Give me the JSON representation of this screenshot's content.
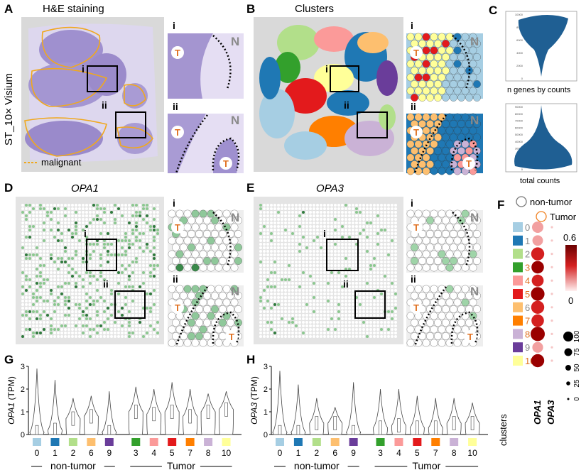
{
  "panels": {
    "A": {
      "label": "A",
      "title": "H&E staining",
      "sample": "ST_10× Visium",
      "legend": "malignant",
      "roi": [
        "i",
        "ii"
      ]
    },
    "B": {
      "label": "B",
      "title": "Clusters",
      "roi": [
        "i",
        "ii"
      ]
    },
    "C": {
      "label": "C",
      "violin1_label": "n genes by counts",
      "violin2_label": "total counts",
      "violin1_ticks": [
        "10000",
        "8000",
        "6000",
        "4000",
        "2000",
        "0"
      ],
      "violin2_ticks": [
        "90000",
        "80000",
        "70000",
        "60000",
        "50000",
        "40000",
        "30000",
        "20000",
        "10000",
        "0"
      ]
    },
    "D": {
      "label": "D",
      "gene": "OPA1",
      "roi": [
        "i",
        "ii"
      ]
    },
    "E": {
      "label": "E",
      "gene": "OPA3",
      "roi": [
        "i",
        "ii"
      ]
    },
    "F": {
      "label": "F",
      "legend_nontumor": "non-tumor",
      "legend_tumor": "Tumor",
      "colorbar_max": "0.6",
      "colorbar_min": "0",
      "size_legend": [
        "100",
        "75",
        "50",
        "25",
        "0"
      ],
      "x_labels": [
        "OPA1",
        "OPA3"
      ],
      "y_title": "clusters"
    },
    "G": {
      "label": "G"
    },
    "H": {
      "label": "H"
    },
    "markers": {
      "normal": "N",
      "tumor": "T"
    }
  },
  "cluster_colors": {
    "0": "#a6cee3",
    "1": "#1f78b4",
    "2": "#b2df8a",
    "3": "#33a02c",
    "4": "#fb9a99",
    "5": "#e31a1c",
    "6": "#fdbf6f",
    "7": "#ff7f00",
    "8": "#cab2d6",
    "9": "#6a3d9a",
    "10": "#ffff99"
  },
  "clusters": [
    {
      "id": "0",
      "tumor": false,
      "opa1_pct": 75,
      "opa1_expr": 0.3,
      "opa3_pct": 5,
      "opa3_expr": 0.05
    },
    {
      "id": "1",
      "tumor": false,
      "opa1_pct": 68,
      "opa1_expr": 0.32,
      "opa3_pct": 5,
      "opa3_expr": 0.05
    },
    {
      "id": "2",
      "tumor": false,
      "opa1_pct": 90,
      "opa1_expr": 0.5,
      "opa3_pct": 5,
      "opa3_expr": 0.05
    },
    {
      "id": "3",
      "tumor": true,
      "opa1_pct": 85,
      "opa1_expr": 0.58,
      "opa3_pct": 5,
      "opa3_expr": 0.05
    },
    {
      "id": "4",
      "tumor": true,
      "opa1_pct": 80,
      "opa1_expr": 0.52,
      "opa3_pct": 5,
      "opa3_expr": 0.05
    },
    {
      "id": "5",
      "tumor": true,
      "opa1_pct": 95,
      "opa1_expr": 0.6,
      "opa3_pct": 5,
      "opa3_expr": 0.05
    },
    {
      "id": "6",
      "tumor": false,
      "opa1_pct": 90,
      "opa1_expr": 0.55,
      "opa3_pct": 5,
      "opa3_expr": 0.05
    },
    {
      "id": "7",
      "tumor": true,
      "opa1_pct": 85,
      "opa1_expr": 0.5,
      "opa3_pct": 5,
      "opa3_expr": 0.05
    },
    {
      "id": "8",
      "tumor": true,
      "opa1_pct": 100,
      "opa1_expr": 0.62,
      "opa3_pct": 5,
      "opa3_expr": 0.05
    },
    {
      "id": "9",
      "tumor": false,
      "opa1_pct": 70,
      "opa1_expr": 0.4,
      "opa3_pct": 5,
      "opa3_expr": 0.05
    },
    {
      "id": "10",
      "tumor": true,
      "opa1_pct": 90,
      "opa1_expr": 0.58,
      "opa3_pct": 5,
      "opa3_expr": 0.05
    }
  ],
  "chart_data": [
    {
      "type": "violin",
      "panel": "G",
      "ylabel": "OPA1 (TPM)",
      "ylim": [
        0,
        3
      ],
      "yticks": [
        "0",
        "1",
        "2",
        "3"
      ],
      "categories": [
        "0",
        "1",
        "2",
        "6",
        "9",
        "3",
        "4",
        "5",
        "7",
        "8",
        "10"
      ],
      "medians": [
        0.1,
        0.2,
        0.7,
        0.8,
        0.1,
        1.0,
        0.9,
        1.0,
        0.8,
        1.0,
        1.1
      ],
      "maxima": [
        2.9,
        2.4,
        1.6,
        1.7,
        1.9,
        2.1,
        2.0,
        2.3,
        2.0,
        1.8,
        1.9
      ],
      "group_labels": [
        "non-tumor",
        "Tumor"
      ]
    },
    {
      "type": "violin",
      "panel": "H",
      "ylabel": "OPA3 (TPM)",
      "ylim": [
        0,
        3
      ],
      "yticks": [
        "0",
        "1",
        "2",
        "3"
      ],
      "categories": [
        "0",
        "1",
        "2",
        "6",
        "9",
        "3",
        "4",
        "5",
        "7",
        "8",
        "10"
      ],
      "medians": [
        0.1,
        0.1,
        0.5,
        0.5,
        0.1,
        0.3,
        0.4,
        0.3,
        0.3,
        0.5,
        0.5
      ],
      "maxima": [
        2.8,
        2.2,
        1.6,
        1.2,
        2.3,
        2.0,
        2.0,
        1.7,
        1.6,
        1.6,
        1.4
      ],
      "group_labels": [
        "non-tumor",
        "Tumor"
      ]
    }
  ]
}
